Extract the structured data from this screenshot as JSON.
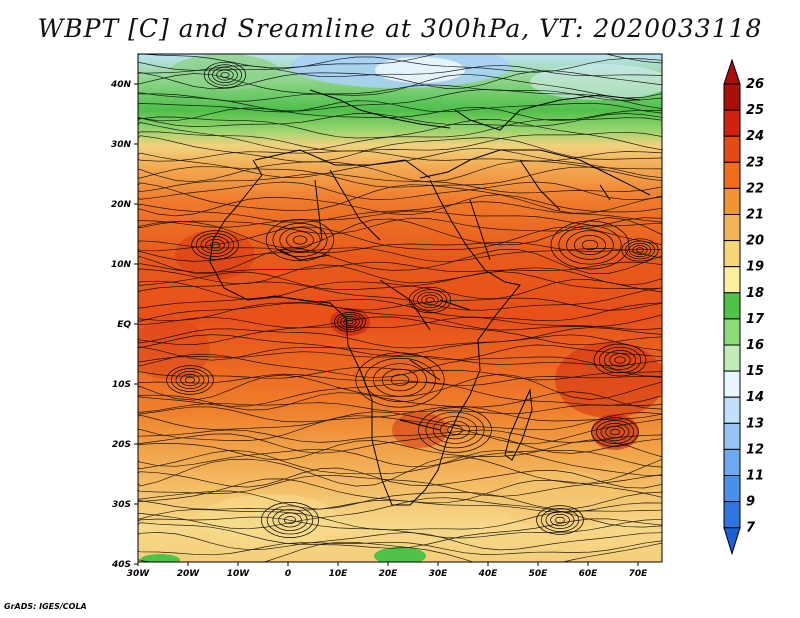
{
  "title": "WBPT [C] and Sreamline at 300hPa, VT: 2020033118",
  "credit": "GrADS: IGES/COLA",
  "map": {
    "lon_ticks": [
      "30W",
      "20W",
      "10W",
      "0",
      "10E",
      "20E",
      "30E",
      "40E",
      "50E",
      "60E",
      "70E"
    ],
    "lat_ticks": [
      "40N",
      "30N",
      "20N",
      "10N",
      "EQ",
      "10S",
      "20S",
      "30S",
      "40S"
    ],
    "lon_range": [
      -30,
      75
    ],
    "lat_range": [
      -40,
      45
    ],
    "field": "WBPT",
    "level": "300hPa",
    "valid_time": "2020033118"
  },
  "colorbar": {
    "labels": [
      "7",
      "9",
      "11",
      "12",
      "13",
      "14",
      "15",
      "16",
      "17",
      "18",
      "19",
      "20",
      "21",
      "22",
      "23",
      "24",
      "25",
      "26"
    ],
    "colors": [
      "#1f5fd6",
      "#2f74e0",
      "#4a8fe8",
      "#6fa9ef",
      "#97c4f5",
      "#c3e0fa",
      "#e8f7fb",
      "#c2ecb9",
      "#8ddc7a",
      "#4fc24a",
      "#fbf0a0",
      "#f7d77c",
      "#f3b457",
      "#f29336",
      "#ef6d1c",
      "#e44a13",
      "#cf220f",
      "#a8100c"
    ]
  }
}
